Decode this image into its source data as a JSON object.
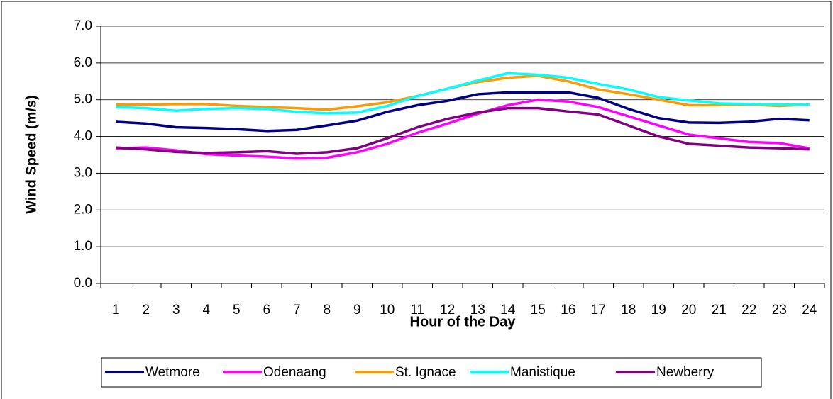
{
  "chart_data": {
    "type": "line",
    "x_label": "Hour of the Day",
    "y_label": "Wind Speed (m/s)",
    "categories": [
      "1",
      "2",
      "3",
      "4",
      "5",
      "6",
      "7",
      "8",
      "9",
      "10",
      "11",
      "12",
      "13",
      "14",
      "15",
      "16",
      "17",
      "18",
      "19",
      "20",
      "21",
      "22",
      "23",
      "24"
    ],
    "series": [
      {
        "name": "Wetmore",
        "color": "#000080",
        "values": [
          4.4,
          4.35,
          4.25,
          4.23,
          4.2,
          4.15,
          4.18,
          4.3,
          4.43,
          4.67,
          4.85,
          4.97,
          5.15,
          5.2,
          5.2,
          5.2,
          5.05,
          4.75,
          4.5,
          4.38,
          4.37,
          4.4,
          4.48,
          4.44
        ]
      },
      {
        "name": "Odenaang",
        "color": "#ff00ff",
        "values": [
          3.67,
          3.7,
          3.62,
          3.52,
          3.48,
          3.45,
          3.4,
          3.42,
          3.57,
          3.8,
          4.1,
          4.35,
          4.62,
          4.85,
          5.0,
          4.95,
          4.8,
          4.55,
          4.3,
          4.05,
          3.95,
          3.85,
          3.82,
          3.68
        ]
      },
      {
        "name": "St. Ignace",
        "color": "#ff9900",
        "values": [
          4.87,
          4.87,
          4.88,
          4.88,
          4.83,
          4.8,
          4.77,
          4.73,
          4.82,
          4.93,
          5.1,
          5.3,
          5.48,
          5.6,
          5.65,
          5.5,
          5.28,
          5.15,
          5.0,
          4.85,
          4.85,
          4.87,
          4.83,
          4.87
        ]
      },
      {
        "name": "Manistique",
        "color": "#00ffff",
        "values": [
          4.8,
          4.77,
          4.7,
          4.75,
          4.77,
          4.75,
          4.67,
          4.63,
          4.65,
          4.83,
          5.1,
          5.3,
          5.52,
          5.72,
          5.68,
          5.6,
          5.43,
          5.28,
          5.07,
          4.98,
          4.9,
          4.88,
          4.87,
          4.87
        ]
      },
      {
        "name": "Newberry",
        "color": "#800080",
        "values": [
          3.7,
          3.65,
          3.58,
          3.55,
          3.57,
          3.6,
          3.53,
          3.57,
          3.68,
          3.95,
          4.25,
          4.48,
          4.65,
          4.77,
          4.77,
          4.68,
          4.6,
          4.3,
          4.0,
          3.8,
          3.75,
          3.7,
          3.68,
          3.65
        ]
      }
    ],
    "ylim": [
      0,
      7
    ],
    "yticks": [
      {
        "value": 0,
        "label": "0.0"
      },
      {
        "value": 1,
        "label": "1.0"
      },
      {
        "value": 2,
        "label": "2.0"
      },
      {
        "value": 3,
        "label": "3.0"
      },
      {
        "value": 4,
        "label": "4.0"
      },
      {
        "value": 5,
        "label": "5.0"
      },
      {
        "value": 6,
        "label": "6.0"
      },
      {
        "value": 7,
        "label": "7.0"
      }
    ],
    "grid": true,
    "legend": "bottom"
  }
}
